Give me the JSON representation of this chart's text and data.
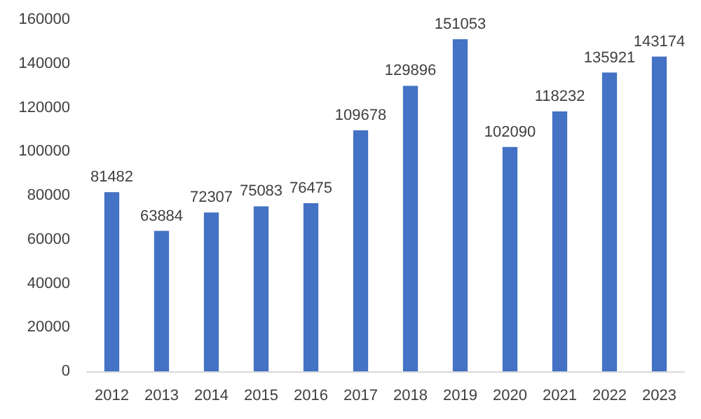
{
  "chart_data": {
    "type": "bar",
    "categories": [
      "2012",
      "2013",
      "2014",
      "2015",
      "2016",
      "2017",
      "2018",
      "2019",
      "2020",
      "2021",
      "2022",
      "2023"
    ],
    "values": [
      81482,
      63884,
      72307,
      75083,
      76475,
      109678,
      129896,
      151053,
      102090,
      118232,
      135921,
      143174
    ],
    "color": "#4472c4",
    "ylim": [
      0,
      160000
    ],
    "yticks": [
      0,
      20000,
      40000,
      60000,
      80000,
      100000,
      120000,
      140000,
      160000
    ],
    "grid": false,
    "data_labels": true
  }
}
